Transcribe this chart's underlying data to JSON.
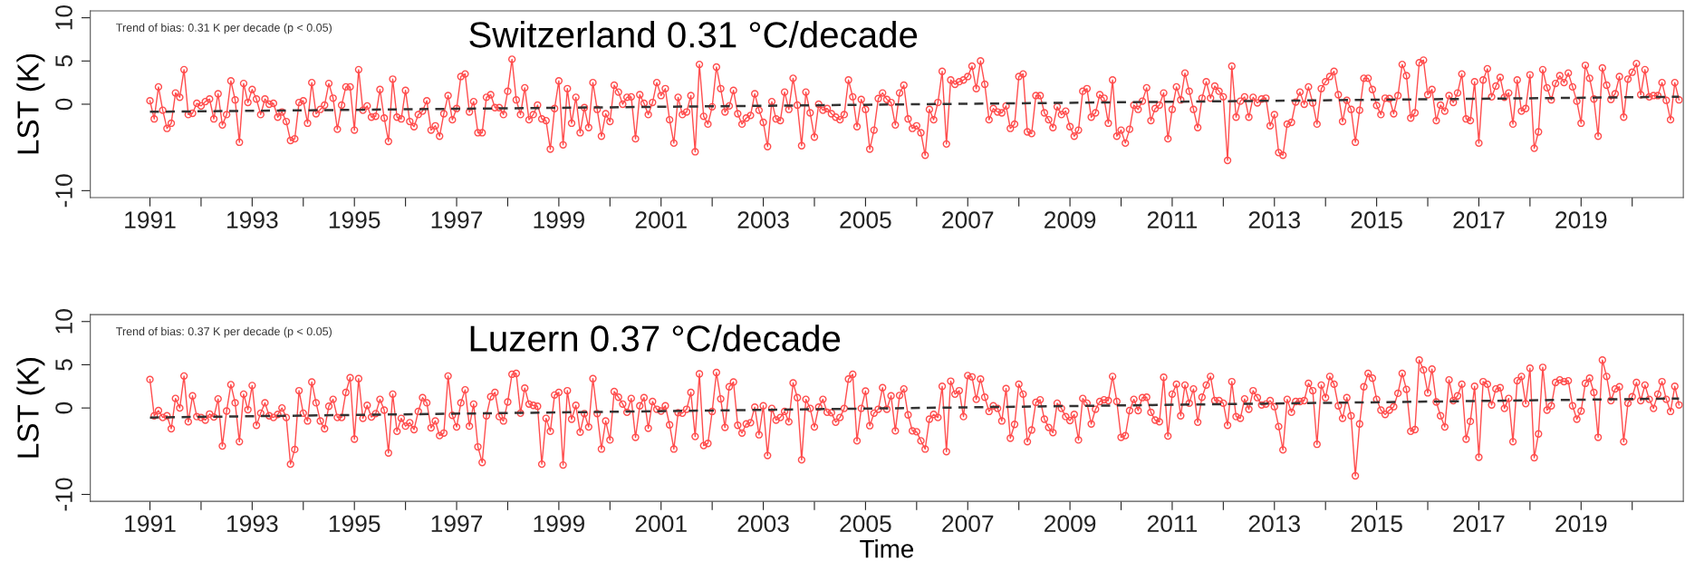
{
  "chart_data": [
    {
      "type": "line",
      "ylabel": "LST (K)",
      "grid": false,
      "marker": "circle",
      "annotations": [
        "Trend of bias: 0.31 K per decade (p < 0.05)",
        "Switzerland 0.31 °C/decade"
      ],
      "xlim": [
        "1989-11",
        "2021-01"
      ],
      "ylim": [
        -10.8,
        10.8
      ],
      "yticks": [
        -10,
        0,
        5,
        10
      ],
      "xticks": [
        "1991",
        {
          "value": "1992",
          "label": null
        },
        "1993",
        {
          "value": "1994",
          "label": null
        },
        "1995",
        {
          "value": "1996",
          "label": null
        },
        "1997",
        {
          "value": "1998",
          "label": null
        },
        "1999",
        {
          "value": "2000",
          "label": null
        },
        "2001",
        {
          "value": "2002",
          "label": null
        },
        "2003",
        {
          "value": "2004",
          "label": null
        },
        "2005",
        {
          "value": "2006",
          "label": null
        },
        "2007",
        {
          "value": "2008",
          "label": null
        },
        "2009",
        {
          "value": "2010",
          "label": null
        },
        "2011",
        {
          "value": "2012",
          "label": null
        },
        "2013",
        {
          "value": "2014",
          "label": null
        },
        "2015",
        {
          "value": "2016",
          "label": null
        },
        "2017",
        {
          "value": "2018",
          "label": null
        },
        "2019",
        {
          "value": "2020",
          "label": null
        }
      ],
      "x": [
        "1991-01",
        "1991-02",
        "1991-03",
        "1991-04",
        "1991-05",
        "1991-06",
        "1991-07",
        "1991-08",
        "1991-09",
        "1991-10",
        "1991-11",
        "1991-12",
        "1992-01",
        "1992-02",
        "1992-03",
        "1992-04",
        "1992-05",
        "1992-06",
        "1992-07",
        "1992-08",
        "1992-09",
        "1992-10",
        "1992-11",
        "1992-12",
        "1993-01",
        "1993-02",
        "1993-03",
        "1993-04",
        "1993-05",
        "1993-06",
        "1993-07",
        "1993-08",
        "1993-09",
        "1993-10",
        "1993-11",
        "1993-12",
        "1994-01",
        "1994-02",
        "1994-03",
        "1994-04",
        "1994-05",
        "1994-06",
        "1994-07",
        "1994-08",
        "1994-09",
        "1994-10",
        "1994-11",
        "1994-12",
        "1995-01",
        "1995-02",
        "1995-03",
        "1995-04",
        "1995-05",
        "1995-06",
        "1995-07",
        "1995-08",
        "1995-09",
        "1995-10",
        "1995-11",
        "1995-12",
        "1996-01",
        "1996-02",
        "1996-03",
        "1996-04",
        "1996-05",
        "1996-06",
        "1996-07",
        "1996-08",
        "1996-09",
        "1996-10",
        "1996-11",
        "1996-12",
        "1997-01",
        "1997-02",
        "1997-03",
        "1997-04",
        "1997-05",
        "1997-06",
        "1997-07",
        "1997-08",
        "1997-09",
        "1997-10",
        "1997-11",
        "1997-12",
        "1998-01",
        "1998-02",
        "1998-03",
        "1998-04",
        "1998-05",
        "1998-06",
        "1998-07",
        "1998-08",
        "1998-09",
        "1998-10",
        "1998-11",
        "1998-12",
        "1999-01",
        "1999-02",
        "1999-03",
        "1999-04",
        "1999-05",
        "1999-06",
        "1999-07",
        "1999-08",
        "1999-09",
        "1999-10",
        "1999-11",
        "1999-12",
        "2000-01",
        "2000-02",
        "2000-03",
        "2000-04",
        "2000-05",
        "2000-06",
        "2000-07",
        "2000-08",
        "2000-09",
        "2000-10",
        "2000-11",
        "2000-12",
        "2001-01",
        "2001-02",
        "2001-03",
        "2001-04",
        "2001-05",
        "2001-06",
        "2001-07",
        "2001-08",
        "2001-09",
        "2001-10",
        "2001-11",
        "2001-12",
        "2002-01",
        "2002-02",
        "2002-03",
        "2002-04",
        "2002-05",
        "2002-06",
        "2002-07",
        "2002-08",
        "2002-09",
        "2002-10",
        "2002-11",
        "2002-12",
        "2003-01",
        "2003-02",
        "2003-03",
        "2003-04",
        "2003-05",
        "2003-06",
        "2003-07",
        "2003-08",
        "2003-09",
        "2003-10",
        "2003-11",
        "2003-12",
        "2004-01",
        "2004-02",
        "2004-03",
        "2004-04",
        "2004-05",
        "2004-06",
        "2004-07",
        "2004-08",
        "2004-09",
        "2004-10",
        "2004-11",
        "2004-12",
        "2005-01",
        "2005-02",
        "2005-03",
        "2005-04",
        "2005-05",
        "2005-06",
        "2005-07",
        "2005-08",
        "2005-09",
        "2005-10",
        "2005-11",
        "2005-12",
        "2006-01",
        "2006-02",
        "2006-03",
        "2006-04",
        "2006-05",
        "2006-06",
        "2006-07",
        "2006-08",
        "2006-09",
        "2006-10",
        "2006-11",
        "2006-12",
        "2007-01",
        "2007-02",
        "2007-03",
        "2007-04",
        "2007-05",
        "2007-06",
        "2007-07",
        "2007-08",
        "2007-09",
        "2007-10",
        "2007-11",
        "2007-12",
        "2008-01",
        "2008-02",
        "2008-03",
        "2008-04",
        "2008-05",
        "2008-06",
        "2008-07",
        "2008-08",
        "2008-09",
        "2008-10",
        "2008-11",
        "2008-12",
        "2009-01",
        "2009-02",
        "2009-03",
        "2009-04",
        "2009-05",
        "2009-06",
        "2009-07",
        "2009-08",
        "2009-09",
        "2009-10",
        "2009-11",
        "2009-12",
        "2010-01",
        "2010-02",
        "2010-03",
        "2010-04",
        "2010-05",
        "2010-06",
        "2010-07",
        "2010-08",
        "2010-09",
        "2010-10",
        "2010-11",
        "2010-12",
        "2011-01",
        "2011-02",
        "2011-03",
        "2011-04",
        "2011-05",
        "2011-06",
        "2011-07",
        "2011-08",
        "2011-09",
        "2011-10",
        "2011-11",
        "2011-12",
        "2012-01",
        "2012-02",
        "2012-03",
        "2012-04",
        "2012-05",
        "2012-06",
        "2012-07",
        "2012-08",
        "2012-09",
        "2012-10",
        "2012-11",
        "2012-12",
        "2013-01",
        "2013-02",
        "2013-03",
        "2013-04",
        "2013-05",
        "2013-06",
        "2013-07",
        "2013-08",
        "2013-09",
        "2013-10",
        "2013-11",
        "2013-12",
        "2014-01",
        "2014-02",
        "2014-03",
        "2014-04",
        "2014-05",
        "2014-06",
        "2014-07",
        "2014-08",
        "2014-09",
        "2014-10",
        "2014-11",
        "2014-12",
        "2015-01",
        "2015-02",
        "2015-03",
        "2015-04",
        "2015-05",
        "2015-06",
        "2015-07",
        "2015-08",
        "2015-09",
        "2015-10",
        "2015-11",
        "2015-12",
        "2016-01",
        "2016-02",
        "2016-03",
        "2016-04",
        "2016-05",
        "2016-06",
        "2016-07",
        "2016-08",
        "2016-09",
        "2016-10",
        "2016-11",
        "2016-12",
        "2017-01",
        "2017-02",
        "2017-03",
        "2017-04",
        "2017-05",
        "2017-06",
        "2017-07",
        "2017-08",
        "2017-09",
        "2017-10",
        "2017-11",
        "2017-12",
        "2018-01",
        "2018-02",
        "2018-03",
        "2018-04",
        "2018-05",
        "2018-06",
        "2018-07",
        "2018-08",
        "2018-09",
        "2018-10",
        "2018-11",
        "2018-12",
        "2019-01",
        "2019-02",
        "2019-03",
        "2019-04",
        "2019-05",
        "2019-06",
        "2019-07",
        "2019-08",
        "2019-09",
        "2019-10",
        "2019-11",
        "2019-12",
        "2020-01",
        "2020-02",
        "2020-03",
        "2020-04",
        "2020-05",
        "2020-06",
        "2020-07",
        "2020-08",
        "2020-09",
        "2020-10",
        "2020-11",
        "2020-12"
      ],
      "series": [
        {
          "color": "#ff4d4d",
          "values": [
            0.4,
            -1.7,
            2.0,
            -0.7,
            -2.8,
            -2.2,
            1.3,
            0.8,
            4.0,
            -1.2,
            -1.05,
            0.1,
            -0.2,
            0.3,
            0.6,
            -1.7,
            1.2,
            -2.4,
            -1.2,
            2.7,
            0.5,
            -4.4,
            2.4,
            0.2,
            1.7,
            0.6,
            -1.2,
            0.6,
            0,
            0.1,
            -1.5,
            -0.9,
            -2.0,
            -4.2,
            -4.0,
            0.2,
            0.4,
            -2.2,
            2.5,
            -1.1,
            -0.6,
            -0.1,
            2.4,
            0.7,
            -2.9,
            -0.1,
            2.0,
            2.0,
            -3.0,
            4.0,
            -0.7,
            -0.2,
            -1.5,
            -1.4,
            1.7,
            -1.6,
            -4.3,
            2.9,
            -1.5,
            -1.7,
            1.6,
            -2.0,
            -2.6,
            -1.2,
            -0.8,
            0.4,
            -3.0,
            -2.5,
            -3.7,
            -1.1,
            1.0,
            -1.8,
            -0.5,
            3.2,
            3.5,
            -0.9,
            0.3,
            -3.3,
            -3.3,
            0.8,
            1.1,
            -0.4,
            -0.4,
            -1.2,
            1.5,
            5.2,
            0.5,
            -1.2,
            1.9,
            -1.8,
            -1.2,
            -0.1,
            -1.7,
            -1.9,
            -5.2,
            -0.5,
            2.7,
            -4.7,
            1.8,
            -2.2,
            0.8,
            -3.3,
            -0.4,
            -2.7,
            2.5,
            -0.6,
            -3.7,
            -1.1,
            -2.0,
            2.2,
            1.4,
            0,
            0.8,
            0.85,
            -4.0,
            1.1,
            0.1,
            -1.2,
            0.2,
            2.5,
            1.0,
            1.8,
            -1.8,
            -4.5,
            0.8,
            -1.2,
            -0.9,
            1.0,
            -5.5,
            4.6,
            -1.4,
            -2.3,
            -0.3,
            4.3,
            1.8,
            -0.9,
            -0.2,
            1.6,
            -1.1,
            -2.3,
            -1.6,
            -1.3,
            1.2,
            -0.7,
            -2.1,
            -4.9,
            0.3,
            -1.7,
            -1.9,
            1.4,
            -0.6,
            3.0,
            -0.1,
            -4.8,
            1.4,
            -1.0,
            -3.8,
            0,
            -0.7,
            -0.5,
            -1.1,
            -1.5,
            -1.8,
            -1.2,
            2.8,
            0.85,
            -2.6,
            0.55,
            -0.6,
            -5.2,
            -3.0,
            0.65,
            1.3,
            0.55,
            0.2,
            -2.4,
            1.3,
            2.2,
            -1.7,
            -2.8,
            -2.5,
            -3.3,
            -5.9,
            -0.6,
            -1.8,
            0.2,
            3.8,
            -4.6,
            2.8,
            2.3,
            2.6,
            2.8,
            3.2,
            4.4,
            1.8,
            5.0,
            2.3,
            -1.8,
            -0.5,
            -0.9,
            -1.0,
            -0.2,
            -2.8,
            -2.3,
            3.2,
            3.5,
            -3.2,
            -3.4,
            1.0,
            1.0,
            -1.0,
            -1.8,
            -2.7,
            -0.3,
            -1.2,
            -0.8,
            -2.6,
            -3.7,
            -3.0,
            1.5,
            1.8,
            -1.5,
            -1.0,
            1.1,
            0.7,
            -2.2,
            2.8,
            -3.7,
            -3.0,
            -4.5,
            -2.9,
            -0.1,
            -0.6,
            0.35,
            1.9,
            -1.9,
            -0.5,
            -0.1,
            1.3,
            -4.0,
            -0.6,
            2.0,
            0.5,
            3.6,
            1.5,
            -0.6,
            -2.7,
            0.7,
            2.6,
            0.7,
            2.1,
            1.5,
            0.85,
            -6.5,
            4.4,
            -1.5,
            0.35,
            0.85,
            -1.5,
            0.8,
            0.15,
            0.6,
            0.7,
            -2.5,
            -1.2,
            -5.6,
            -5.9,
            -2.3,
            -2.1,
            0.25,
            1.4,
            0,
            2.0,
            0.15,
            -2.3,
            1.8,
            2.6,
            3.2,
            3.8,
            1.1,
            -2.0,
            0.45,
            -0.6,
            -4.4,
            -0.7,
            3.0,
            3.0,
            1.7,
            -0.15,
            -1.2,
            0.7,
            0.65,
            -1.1,
            1.0,
            4.6,
            3.3,
            -1.6,
            -1.0,
            4.8,
            5.1,
            1.1,
            1.7,
            -1.9,
            -0.1,
            -0.8,
            1.0,
            0.2,
            1.3,
            3.5,
            -1.7,
            -1.9,
            2.6,
            -4.5,
            2.8,
            4.1,
            0.85,
            2.1,
            3.1,
            0.8,
            1.3,
            -2.3,
            2.8,
            -0.8,
            -0.5,
            3.4,
            -5.1,
            -3.2,
            4.0,
            1.9,
            0.5,
            2.4,
            3.3,
            2.5,
            3.6,
            2.0,
            0.35,
            -2.2,
            4.5,
            3.0,
            0.6,
            -3.7,
            4.2,
            2.2,
            0.55,
            1.2,
            3.2,
            -1.5,
            2.9,
            3.7,
            4.7,
            1.1,
            4.0,
            0.85,
            1.0,
            1.0,
            2.5,
            0.45,
            -1.8,
            2.5,
            0.5
          ]
        },
        {
          "type": "line",
          "color": "#333333",
          "line_style": "dashed",
          "marker": "none",
          "x": [
            "1991-01",
            "2020-12"
          ],
          "values": [
            -0.88,
            0.86
          ]
        }
      ]
    },
    {
      "type": "line",
      "xlabel": "Time",
      "ylabel": "LST (K)",
      "grid": false,
      "marker": "circle",
      "annotations": [
        "Trend of bias: 0.37 K per decade (p < 0.05)",
        "Luzern 0.37 °C/decade"
      ],
      "xlim": [
        "1989-11",
        "2021-01"
      ],
      "ylim": [
        -10.8,
        10.8
      ],
      "yticks": [
        -10,
        0,
        5,
        10
      ],
      "xticks": [
        "1991",
        {
          "value": "1992",
          "label": null
        },
        "1993",
        {
          "value": "1994",
          "label": null
        },
        "1995",
        {
          "value": "1996",
          "label": null
        },
        "1997",
        {
          "value": "1998",
          "label": null
        },
        "1999",
        {
          "value": "2000",
          "label": null
        },
        "2001",
        {
          "value": "2002",
          "label": null
        },
        "2003",
        {
          "value": "2004",
          "label": null
        },
        "2005",
        {
          "value": "2006",
          "label": null
        },
        "2007",
        {
          "value": "2008",
          "label": null
        },
        "2009",
        {
          "value": "2010",
          "label": null
        },
        "2011",
        {
          "value": "2012",
          "label": null
        },
        "2013",
        {
          "value": "2014",
          "label": null
        },
        "2015",
        {
          "value": "2016",
          "label": null
        },
        "2017",
        {
          "value": "2018",
          "label": null
        },
        "2019",
        {
          "value": "2020",
          "label": null
        }
      ],
      "x": [
        "1991-01",
        "1991-02",
        "1991-03",
        "1991-04",
        "1991-05",
        "1991-06",
        "1991-07",
        "1991-08",
        "1991-09",
        "1991-10",
        "1991-11",
        "1991-12",
        "1992-01",
        "1992-02",
        "1992-03",
        "1992-04",
        "1992-05",
        "1992-06",
        "1992-07",
        "1992-08",
        "1992-09",
        "1992-10",
        "1992-11",
        "1992-12",
        "1993-01",
        "1993-02",
        "1993-03",
        "1993-04",
        "1993-05",
        "1993-06",
        "1993-07",
        "1993-08",
        "1993-09",
        "1993-10",
        "1993-11",
        "1993-12",
        "1994-01",
        "1994-02",
        "1994-03",
        "1994-04",
        "1994-05",
        "1994-06",
        "1994-07",
        "1994-08",
        "1994-09",
        "1994-10",
        "1994-11",
        "1994-12",
        "1995-01",
        "1995-02",
        "1995-03",
        "1995-04",
        "1995-05",
        "1995-06",
        "1995-07",
        "1995-08",
        "1995-09",
        "1995-10",
        "1995-11",
        "1995-12",
        "1996-01",
        "1996-02",
        "1996-03",
        "1996-04",
        "1996-05",
        "1996-06",
        "1996-07",
        "1996-08",
        "1996-09",
        "1996-10",
        "1996-11",
        "1996-12",
        "1997-01",
        "1997-02",
        "1997-03",
        "1997-04",
        "1997-05",
        "1997-06",
        "1997-07",
        "1997-08",
        "1997-09",
        "1997-10",
        "1997-11",
        "1997-12",
        "1998-01",
        "1998-02",
        "1998-03",
        "1998-04",
        "1998-05",
        "1998-06",
        "1998-07",
        "1998-08",
        "1998-09",
        "1998-10",
        "1998-11",
        "1998-12",
        "1999-01",
        "1999-02",
        "1999-03",
        "1999-04",
        "1999-05",
        "1999-06",
        "1999-07",
        "1999-08",
        "1999-09",
        "1999-10",
        "1999-11",
        "1999-12",
        "2000-01",
        "2000-02",
        "2000-03",
        "2000-04",
        "2000-05",
        "2000-06",
        "2000-07",
        "2000-08",
        "2000-09",
        "2000-10",
        "2000-11",
        "2000-12",
        "2001-01",
        "2001-02",
        "2001-03",
        "2001-04",
        "2001-05",
        "2001-06",
        "2001-07",
        "2001-08",
        "2001-09",
        "2001-10",
        "2001-11",
        "2001-12",
        "2002-01",
        "2002-02",
        "2002-03",
        "2002-04",
        "2002-05",
        "2002-06",
        "2002-07",
        "2002-08",
        "2002-09",
        "2002-10",
        "2002-11",
        "2002-12",
        "2003-01",
        "2003-02",
        "2003-03",
        "2003-04",
        "2003-05",
        "2003-06",
        "2003-07",
        "2003-08",
        "2003-09",
        "2003-10",
        "2003-11",
        "2003-12",
        "2004-01",
        "2004-02",
        "2004-03",
        "2004-04",
        "2004-05",
        "2004-06",
        "2004-07",
        "2004-08",
        "2004-09",
        "2004-10",
        "2004-11",
        "2004-12",
        "2005-01",
        "2005-02",
        "2005-03",
        "2005-04",
        "2005-05",
        "2005-06",
        "2005-07",
        "2005-08",
        "2005-09",
        "2005-10",
        "2005-11",
        "2005-12",
        "2006-01",
        "2006-02",
        "2006-03",
        "2006-04",
        "2006-05",
        "2006-06",
        "2006-07",
        "2006-08",
        "2006-09",
        "2006-10",
        "2006-11",
        "2006-12",
        "2007-01",
        "2007-02",
        "2007-03",
        "2007-04",
        "2007-05",
        "2007-06",
        "2007-07",
        "2007-08",
        "2007-09",
        "2007-10",
        "2007-11",
        "2007-12",
        "2008-01",
        "2008-02",
        "2008-03",
        "2008-04",
        "2008-05",
        "2008-06",
        "2008-07",
        "2008-08",
        "2008-09",
        "2008-10",
        "2008-11",
        "2008-12",
        "2009-01",
        "2009-02",
        "2009-03",
        "2009-04",
        "2009-05",
        "2009-06",
        "2009-07",
        "2009-08",
        "2009-09",
        "2009-10",
        "2009-11",
        "2009-12",
        "2010-01",
        "2010-02",
        "2010-03",
        "2010-04",
        "2010-05",
        "2010-06",
        "2010-07",
        "2010-08",
        "2010-09",
        "2010-10",
        "2010-11",
        "2010-12",
        "2011-01",
        "2011-02",
        "2011-03",
        "2011-04",
        "2011-05",
        "2011-06",
        "2011-07",
        "2011-08",
        "2011-09",
        "2011-10",
        "2011-11",
        "2011-12",
        "2012-01",
        "2012-02",
        "2012-03",
        "2012-04",
        "2012-05",
        "2012-06",
        "2012-07",
        "2012-08",
        "2012-09",
        "2012-10",
        "2012-11",
        "2012-12",
        "2013-01",
        "2013-02",
        "2013-03",
        "2013-04",
        "2013-05",
        "2013-06",
        "2013-07",
        "2013-08",
        "2013-09",
        "2013-10",
        "2013-11",
        "2013-12",
        "2014-01",
        "2014-02",
        "2014-03",
        "2014-04",
        "2014-05",
        "2014-06",
        "2014-07",
        "2014-08",
        "2014-09",
        "2014-10",
        "2014-11",
        "2014-12",
        "2015-01",
        "2015-02",
        "2015-03",
        "2015-04",
        "2015-05",
        "2015-06",
        "2015-07",
        "2015-08",
        "2015-09",
        "2015-10",
        "2015-11",
        "2015-12",
        "2016-01",
        "2016-02",
        "2016-03",
        "2016-04",
        "2016-05",
        "2016-06",
        "2016-07",
        "2016-08",
        "2016-09",
        "2016-10",
        "2016-11",
        "2016-12",
        "2017-01",
        "2017-02",
        "2017-03",
        "2017-04",
        "2017-05",
        "2017-06",
        "2017-07",
        "2017-08",
        "2017-09",
        "2017-10",
        "2017-11",
        "2017-12",
        "2018-01",
        "2018-02",
        "2018-03",
        "2018-04",
        "2018-05",
        "2018-06",
        "2018-07",
        "2018-08",
        "2018-09",
        "2018-10",
        "2018-11",
        "2018-12",
        "2019-01",
        "2019-02",
        "2019-03",
        "2019-04",
        "2019-05",
        "2019-06",
        "2019-07",
        "2019-08",
        "2019-09",
        "2019-10",
        "2019-11",
        "2019-12",
        "2020-01",
        "2020-02",
        "2020-03",
        "2020-04",
        "2020-05",
        "2020-06",
        "2020-07",
        "2020-08",
        "2020-09",
        "2020-10",
        "2020-11",
        "2020-12"
      ],
      "series": [
        {
          "color": "#ff4d4d",
          "values": [
            3.3,
            -0.9,
            -0.3,
            -1.1,
            -0.9,
            -2.4,
            1.1,
            0,
            3.7,
            -1.6,
            1.4,
            -1.0,
            -1.1,
            -1.4,
            -0.7,
            -1.05,
            1.05,
            -4.4,
            -0.35,
            2.7,
            0.6,
            -3.9,
            1.6,
            -0.2,
            2.6,
            -2.0,
            -0.6,
            0.6,
            -0.9,
            -1.1,
            -0.75,
            0,
            -1.1,
            -6.5,
            -4.8,
            2.0,
            -0.6,
            -1.5,
            3.0,
            0.6,
            -1.5,
            -2.4,
            0.2,
            1.0,
            -1.1,
            -1.1,
            1.8,
            3.5,
            -3.6,
            3.4,
            -1.2,
            0.3,
            -1.05,
            -0.65,
            1.0,
            -0.25,
            -5.2,
            1.6,
            -2.7,
            -1.2,
            -2.1,
            -1.7,
            -2.5,
            -0.4,
            1.2,
            0.6,
            -2.3,
            -1.5,
            -3.2,
            -2.9,
            3.7,
            -0.85,
            -2.2,
            0.6,
            2.1,
            -2.1,
            0.45,
            -4.5,
            -6.3,
            -0.9,
            1.3,
            1.8,
            -1.0,
            -1.5,
            0.7,
            3.9,
            4.0,
            -0.6,
            2.3,
            0.45,
            0.3,
            0.2,
            -6.5,
            -1.2,
            -2.7,
            1.5,
            1.8,
            -6.6,
            2.0,
            -1.3,
            0.3,
            -2.8,
            -0.65,
            -2.2,
            3.4,
            -0.65,
            -4.75,
            -1.5,
            -3.7,
            1.9,
            1.25,
            0.45,
            -0.5,
            1.1,
            -3.4,
            0.25,
            1.2,
            -2.35,
            0.75,
            -0.15,
            -0.35,
            0.25,
            -1.95,
            -4.75,
            -0.55,
            -0.6,
            -0.15,
            1.8,
            -3.3,
            3.95,
            -4.35,
            -4.1,
            -0.4,
            4.1,
            1.05,
            -2.25,
            2.45,
            3.0,
            -2.0,
            -2.9,
            -1.85,
            -1.7,
            0.1,
            -3.1,
            0.25,
            -5.5,
            -0.05,
            -1.4,
            -1.1,
            -0.4,
            -1.6,
            2.9,
            1.2,
            -6.0,
            1.0,
            -0.05,
            -2.2,
            0.1,
            1.0,
            -0.5,
            -0.55,
            -1.65,
            -1.1,
            -0.05,
            3.35,
            3.9,
            -3.8,
            -0.05,
            1.95,
            -2.05,
            -0.6,
            -0.15,
            2.35,
            -0.15,
            1.4,
            -2.65,
            1.45,
            2.2,
            -0.8,
            -2.65,
            -2.75,
            -3.8,
            -4.75,
            -1.3,
            -0.75,
            -1.1,
            2.5,
            -5.05,
            3.1,
            1.6,
            2.0,
            -1.0,
            3.75,
            3.6,
            1.0,
            3.35,
            1.25,
            -0.4,
            0.25,
            -0.05,
            -1.5,
            2.25,
            -3.5,
            -1.9,
            2.75,
            1.6,
            -3.9,
            -2.55,
            0.65,
            0.95,
            -1.3,
            -2.25,
            -2.85,
            0.55,
            -0.05,
            -1.0,
            -1.45,
            -0.75,
            -3.7,
            1.1,
            0.55,
            -1.85,
            -0.15,
            0.75,
            0.95,
            0.85,
            3.65,
            0.75,
            -3.4,
            -3.2,
            -0.3,
            1.0,
            -0.3,
            1.2,
            1.25,
            -0.5,
            -1.4,
            -1.6,
            3.55,
            -3.25,
            1.6,
            2.75,
            -0.9,
            2.65,
            0.55,
            2.2,
            -1.65,
            1.25,
            2.65,
            3.65,
            0.85,
            0.85,
            0.55,
            -2.0,
            3.05,
            -1.0,
            -1.2,
            1.05,
            -0.15,
            2.0,
            1.2,
            0.35,
            0.45,
            0.85,
            0.15,
            -2.15,
            -4.85,
            1.0,
            -0.5,
            0.75,
            0.75,
            0.85,
            2.85,
            2.0,
            -4.2,
            2.65,
            1.2,
            3.65,
            2.75,
            0.25,
            -1.2,
            1.2,
            -0.9,
            -7.85,
            -1.85,
            2.45,
            4.0,
            3.45,
            1.0,
            -0.25,
            -0.75,
            -0.25,
            0.15,
            1.7,
            4.0,
            2.15,
            -2.7,
            -2.5,
            5.55,
            4.4,
            1.75,
            4.5,
            0.7,
            -0.9,
            -2.2,
            3.25,
            0.85,
            1.4,
            2.75,
            -3.6,
            -1.55,
            2.5,
            -5.7,
            3.05,
            2.75,
            0.35,
            2.2,
            2.35,
            -0.05,
            1.1,
            -3.9,
            3.15,
            3.65,
            0.5,
            4.6,
            -5.75,
            -3.0,
            4.7,
            -0.25,
            0.25,
            2.95,
            3.25,
            3.05,
            3.15,
            0.25,
            -1.3,
            -0.35,
            2.85,
            3.45,
            1.8,
            -3.4,
            5.55,
            3.65,
            0.85,
            2.2,
            2.45,
            -3.9,
            0.55,
            1.3,
            2.95,
            0.85,
            2.65,
            1.0,
            -0.05,
            1.6,
            3.05,
            1.0,
            -0.4,
            2.5,
            0.35
          ]
        },
        {
          "type": "line",
          "color": "#333333",
          "line_style": "dashed",
          "marker": "none",
          "x": [
            "1991-01",
            "2020-12"
          ],
          "values": [
            -1.1,
            1.1
          ]
        }
      ]
    }
  ]
}
